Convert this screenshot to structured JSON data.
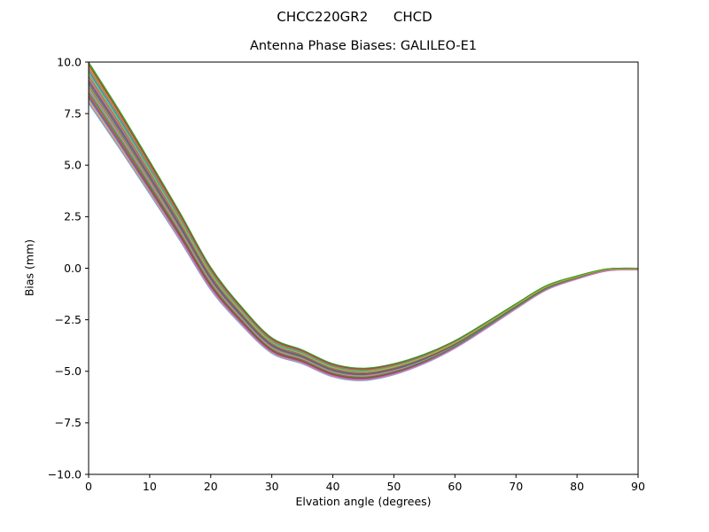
{
  "chart_data": {
    "type": "line",
    "title": "CHCC220GR2      CHCD",
    "subtitle": "Antenna Phase Biases: GALILEO-E1",
    "xlabel": "Elvation angle (degrees)",
    "ylabel": "Bias (mm)",
    "xlim": [
      0,
      90
    ],
    "ylim": [
      -10,
      10
    ],
    "xticks": [
      0,
      10,
      20,
      30,
      40,
      50,
      60,
      70,
      80,
      90
    ],
    "xtick_labels": [
      "0",
      "10",
      "20",
      "30",
      "40",
      "50",
      "60",
      "70",
      "80",
      "90"
    ],
    "yticks": [
      10,
      7.5,
      5,
      2.5,
      0,
      -2.5,
      -5,
      -7.5,
      -10
    ],
    "ytick_labels": [
      "10.0",
      "7.5",
      "5.0",
      "2.5",
      "0.0",
      "−2.5",
      "−5.0",
      "−7.5",
      "−10.0"
    ],
    "grid": false,
    "legend": false,
    "x": [
      0,
      5,
      10,
      15,
      20,
      25,
      30,
      35,
      40,
      45,
      50,
      55,
      60,
      65,
      70,
      75,
      80,
      85,
      90
    ],
    "mean_values": [
      9.0,
      6.75,
      4.4,
      2.0,
      -0.5,
      -2.3,
      -3.75,
      -4.3,
      -4.95,
      -5.15,
      -4.9,
      -4.4,
      -3.7,
      -2.8,
      -1.85,
      -0.95,
      -0.45,
      -0.08,
      -0.04
    ],
    "half_spread": [
      1.0,
      0.92,
      0.8,
      0.68,
      0.55,
      0.45,
      0.38,
      0.34,
      0.32,
      0.3,
      0.27,
      0.23,
      0.19,
      0.16,
      0.13,
      0.11,
      0.08,
      0.05,
      0.04
    ],
    "n_series": 30,
    "color_cycle": [
      "#1f77b4",
      "#ff7f0e",
      "#2ca02c",
      "#d62728",
      "#9467bd",
      "#8c564b",
      "#e377c2",
      "#7f7f7f",
      "#bcbd22",
      "#17becf"
    ],
    "series": [
      {
        "color_index": 0,
        "offset": -0.7
      },
      {
        "color_index": 1,
        "offset": 0.92
      },
      {
        "color_index": 2,
        "offset": -0.2
      },
      {
        "color_index": 3,
        "offset": 0.1
      },
      {
        "color_index": 4,
        "offset": 0.42
      },
      {
        "color_index": 5,
        "offset": -0.52
      },
      {
        "color_index": 6,
        "offset": 0.25
      },
      {
        "color_index": 7,
        "offset": -0.35
      },
      {
        "color_index": 8,
        "offset": 0.78
      },
      {
        "color_index": 9,
        "offset": -1.0
      },
      {
        "color_index": 0,
        "offset": 0.58
      },
      {
        "color_index": 1,
        "offset": -0.12
      },
      {
        "color_index": 2,
        "offset": 0.95
      },
      {
        "color_index": 3,
        "offset": -0.62
      },
      {
        "color_index": 4,
        "offset": 0.02
      },
      {
        "color_index": 5,
        "offset": 0.33
      },
      {
        "color_index": 6,
        "offset": -0.28
      },
      {
        "color_index": 7,
        "offset": 0.18
      },
      {
        "color_index": 8,
        "offset": -0.88
      },
      {
        "color_index": 9,
        "offset": 0.5
      },
      {
        "color_index": 0,
        "offset": -0.05
      },
      {
        "color_index": 1,
        "offset": 0.66
      },
      {
        "color_index": 2,
        "offset": -0.45
      },
      {
        "color_index": 3,
        "offset": 0.86
      },
      {
        "color_index": 4,
        "offset": -0.78
      },
      {
        "color_index": 5,
        "offset": 0.08
      },
      {
        "color_index": 6,
        "offset": -0.95
      },
      {
        "color_index": 7,
        "offset": 0.72
      },
      {
        "color_index": 8,
        "offset": 0.4
      },
      {
        "color_index": 2,
        "offset": 1.0
      }
    ]
  }
}
